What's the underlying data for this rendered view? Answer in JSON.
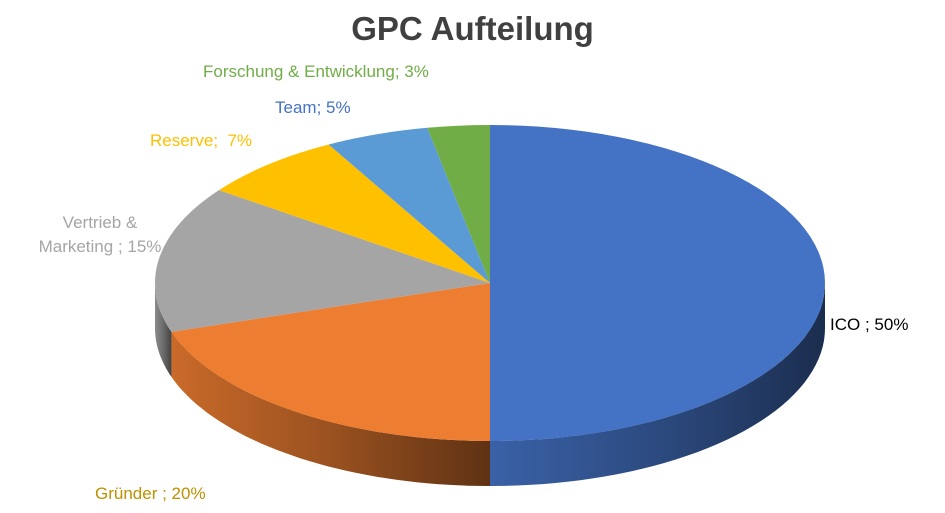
{
  "chart_data": {
    "type": "pie",
    "title": "GPC Aufteilung",
    "categories": [
      "ICO",
      "Gründer",
      "Vertrieb & Marketing",
      "Reserve",
      "Team",
      "Forschung & Entwicklung"
    ],
    "values": [
      50,
      20,
      15,
      7,
      5,
      3
    ],
    "value_labels": [
      " ; 50%",
      " ; 20%",
      " ; 15%",
      ";  7%",
      "; 5%",
      "; 3%"
    ],
    "colors": [
      "#4472c4",
      "#ed7d31",
      "#a5a5a5",
      "#ffc000",
      "#5b9bd5",
      "#70ad47"
    ],
    "label_colors": [
      "#000000",
      "#bf9000",
      "#a5a5a5",
      "#ffc000",
      "#4472c4",
      "#70ad47"
    ],
    "three_d": true
  }
}
